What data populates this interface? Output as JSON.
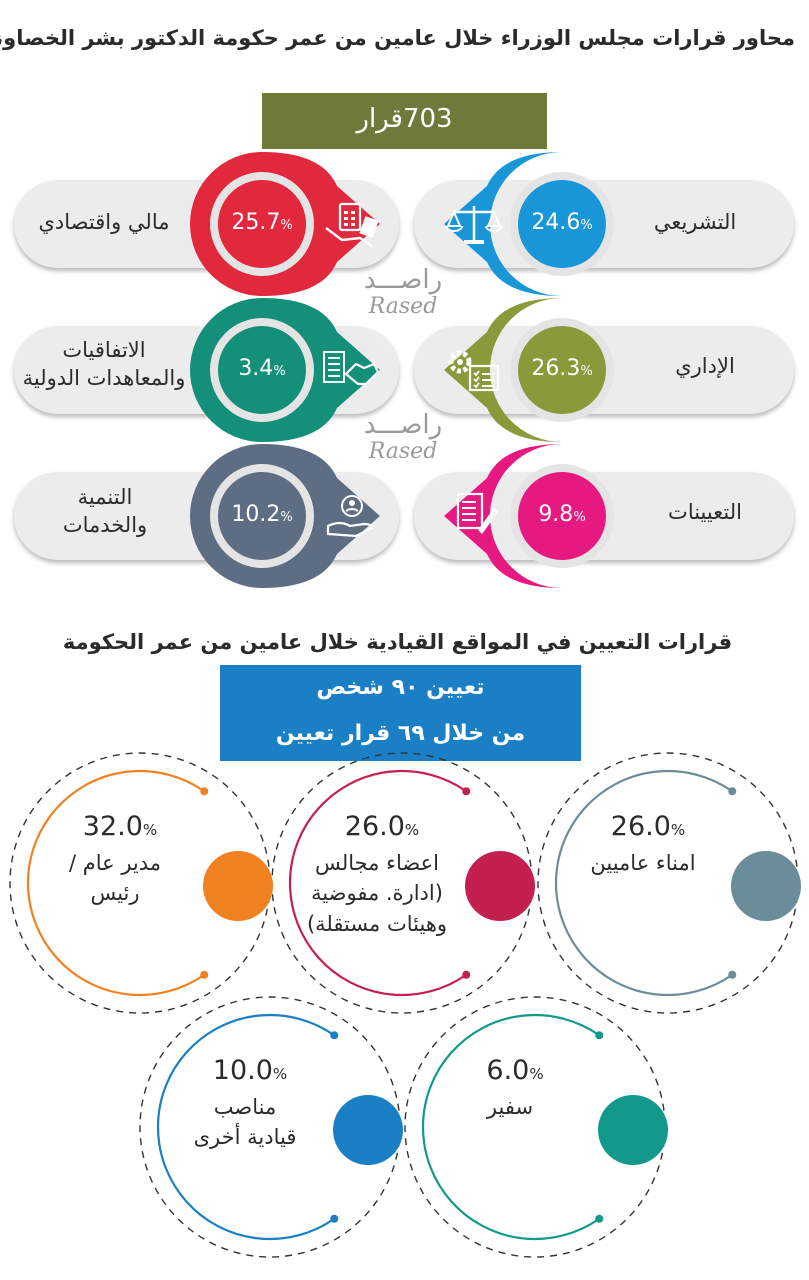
{
  "header": {
    "title": "محاور قرارات مجلس الوزراء خلال عامين من عمر حكومة الدكتور بشر الخصاونه",
    "total_number": "703",
    "total_unit": "قرار"
  },
  "watermark": {
    "arabic": "راصـــد",
    "english": "Rased"
  },
  "percent_sign": "%",
  "chart_data": [
    {
      "type": "bar",
      "title": "محاور قرارات مجلس الوزراء خلال عامين من عمر حكومة الدكتور بشر الخصاونه",
      "categories": [
        "مالي واقتصادي",
        "التشريعي",
        "الاتفاقيات والمعاهدات الدولية",
        "الإداري",
        "التنمية والخدمات",
        "التعيينات"
      ],
      "values": [
        25.7,
        24.6,
        3.4,
        26.3,
        10.2,
        9.8
      ],
      "display_values": [
        "25.7",
        "24.6",
        "3.4",
        "26.3",
        "10.2",
        "9.8"
      ],
      "colors": [
        "#e2283c",
        "#1996d8",
        "#14907a",
        "#8a9a3b",
        "#5e6e82",
        "#e5197f"
      ],
      "icons": [
        "calculator-money-icon",
        "scales-icon",
        "handshake-document-icon",
        "gear-checklist-icon",
        "hand-person-icon",
        "document-pen-icon"
      ]
    },
    {
      "type": "pie",
      "title": "قرارات التعيين في المواقع القيادية خلال عامين من عمر الحكومة",
      "categories": [
        "امناء عاميين",
        "اعضاء مجالس (ادارة، مفوضية وهيئات مستقلة)",
        "مدير عام / رئيس",
        "سفير",
        "مناصب قيادية أخرى"
      ],
      "values": [
        26.0,
        26.0,
        32.0,
        6.0,
        10.0
      ],
      "display_values": [
        "26.0",
        "26.0",
        "32.0",
        "6.0",
        "10.0"
      ],
      "colors": [
        "#6b8c99",
        "#c4204f",
        "#f08120",
        "#12998b",
        "#1a7fc4"
      ]
    }
  ],
  "appointments": {
    "title": "قرارات التعيين في المواقع القيادية خلال عامين من عمر الحكومة",
    "box_line1": "تعيين ٩٠ شخص",
    "box_line2": "من خلال ٦٩ قرار تعيين",
    "labels": [
      [
        "امناء عاميين"
      ],
      [
        "اعضاء مجالس",
        "(ادارة. مفوضية",
        "وهيئات مستقلة)"
      ],
      [
        "مدير عام /",
        "رئيس"
      ],
      [
        "سفير"
      ],
      [
        "مناصب",
        "قيادية أخرى"
      ]
    ]
  },
  "axes_labels": {
    "fin": [
      "مالي واقتصادي"
    ],
    "leg": [
      "التشريعي"
    ],
    "agr": [
      "الاتفاقيات",
      "والمعاهدات الدولية"
    ],
    "adm": [
      "الإداري"
    ],
    "dev": [
      "التنمية",
      "والخدمات"
    ],
    "app": [
      "التعيينات"
    ]
  }
}
